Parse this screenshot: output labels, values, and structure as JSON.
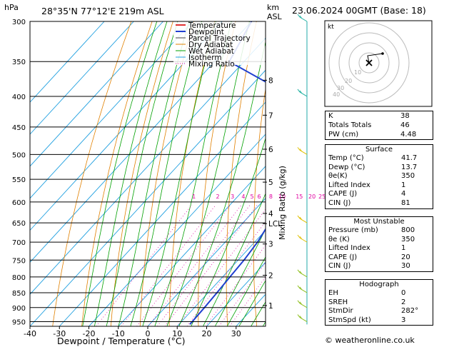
{
  "header": {
    "pressure_unit": "hPa",
    "location": "28°35'N 77°12'E 219m ASL",
    "km_label": "km",
    "asl_label": "ASL",
    "date": "23.06.2024 00GMT (Base: 18)"
  },
  "colors": {
    "temperature": "#e03030",
    "dewpoint": "#2040d0",
    "parcel": "#a0a0a0",
    "dry_adiabat": "#e08000",
    "wet_adiabat": "#00a000",
    "isotherm": "#20a0e0",
    "mixing_ratio": "#e000a0"
  },
  "chart_data": {
    "type": "line",
    "title": "Skew-T log-P diagram",
    "xlabel": "Dewpoint / Temperature (°C)",
    "ylabel": "hPa",
    "y2label": "Mixing Ratio (g/kg)",
    "xlim": [
      -40,
      40
    ],
    "pressure_ticks": [
      300,
      350,
      400,
      450,
      500,
      550,
      600,
      650,
      700,
      750,
      800,
      850,
      900,
      950
    ],
    "temp_ticks": [
      -40,
      -30,
      -20,
      -10,
      0,
      10,
      20,
      30
    ],
    "km_ticks": [
      {
        "km": "1",
        "p": 893
      },
      {
        "km": "2",
        "p": 795
      },
      {
        "km": "3",
        "p": 705
      },
      {
        "km": "4",
        "p": 627
      },
      {
        "km": "5",
        "p": 556
      },
      {
        "km": "6",
        "p": 490
      },
      {
        "km": "7",
        "p": 430
      },
      {
        "km": "8",
        "p": 376
      }
    ],
    "lcl": {
      "label": "LCL",
      "p": 652
    },
    "mixing_ratio_labels": [
      "1",
      "2",
      "3",
      "4",
      "5",
      "6",
      "8",
      "10",
      "15",
      "20",
      "25"
    ],
    "legend": [
      "Temperature",
      "Dewpoint",
      "Parcel Trajectory",
      "Dry Adiabat",
      "Wet Adiabat",
      "Isotherm",
      "Mixing Ratio"
    ],
    "series": [
      {
        "name": "Temperature",
        "points": [
          [
            960,
            41.7
          ],
          [
            900,
            36
          ],
          [
            850,
            31.5
          ],
          [
            800,
            27
          ],
          [
            750,
            22
          ],
          [
            700,
            17.3
          ],
          [
            650,
            11.8
          ],
          [
            600,
            8
          ],
          [
            550,
            3
          ],
          [
            500,
            -3
          ],
          [
            450,
            -10
          ],
          [
            400,
            -17
          ],
          [
            360,
            -23
          ],
          [
            350,
            -24
          ]
        ]
      },
      {
        "name": "Dewpoint",
        "points": [
          [
            960,
            13.7
          ],
          [
            900,
            13.4
          ],
          [
            850,
            13
          ],
          [
            800,
            12.5
          ],
          [
            750,
            12
          ],
          [
            700,
            11
          ],
          [
            650,
            9
          ],
          [
            600,
            4
          ],
          [
            550,
            -2
          ],
          [
            500,
            -6
          ],
          [
            470,
            -15
          ],
          [
            450,
            -18
          ],
          [
            400,
            -23
          ],
          [
            350,
            -55
          ],
          [
            300,
            -60
          ]
        ]
      },
      {
        "name": "Parcel Trajectory",
        "points": [
          [
            960,
            41.7
          ],
          [
            900,
            35
          ],
          [
            850,
            30
          ],
          [
            800,
            25.5
          ],
          [
            750,
            21
          ],
          [
            700,
            16.5
          ],
          [
            652,
            13
          ],
          [
            600,
            8.5
          ],
          [
            550,
            3.8
          ],
          [
            500,
            -1.5
          ],
          [
            450,
            -8
          ],
          [
            400,
            -15.5
          ],
          [
            350,
            -24
          ],
          [
            350,
            -24
          ]
        ]
      }
    ]
  },
  "hodograph": {
    "label": "kt",
    "ring_labels": [
      "10",
      "20",
      "30",
      "40"
    ]
  },
  "indices": [
    {
      "label": "K",
      "value": "38"
    },
    {
      "label": "Totals Totals",
      "value": "46"
    },
    {
      "label": "PW (cm)",
      "value": "4.48"
    }
  ],
  "surface": {
    "title": "Surface",
    "rows": [
      {
        "label": "Temp (°C)",
        "value": "41.7"
      },
      {
        "label": "Dewp (°C)",
        "value": "13.7"
      },
      {
        "label": "θe(K)",
        "value": "350"
      },
      {
        "label": "Lifted Index",
        "value": "1"
      },
      {
        "label": "CAPE (J)",
        "value": "4"
      },
      {
        "label": "CIN (J)",
        "value": "81"
      }
    ]
  },
  "most_unstable": {
    "title": "Most Unstable",
    "rows": [
      {
        "label": "Pressure (mb)",
        "value": "800"
      },
      {
        "label": "θe (K)",
        "value": "350"
      },
      {
        "label": "Lifted Index",
        "value": "1"
      },
      {
        "label": "CAPE (J)",
        "value": "20"
      },
      {
        "label": "CIN (J)",
        "value": "30"
      }
    ]
  },
  "hodograph_table": {
    "title": "Hodograph",
    "rows": [
      {
        "label": "EH",
        "value": "0"
      },
      {
        "label": "SREH",
        "value": "2"
      },
      {
        "label": "StmDir",
        "value": "282°"
      },
      {
        "label": "StmSpd (kt)",
        "value": "3"
      }
    ]
  },
  "copyright": "© weatheronline.co.uk"
}
